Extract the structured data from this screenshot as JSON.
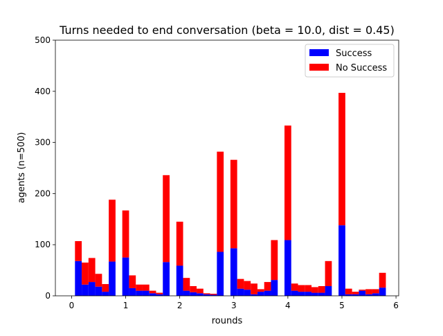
{
  "chart_data": {
    "type": "bar",
    "stacked": true,
    "title": "Turns needed to end conversation (beta = 10.0, dist = 0.45)",
    "xlabel": "rounds",
    "ylabel": "agents (n=500)",
    "xlim": [
      -0.3,
      6.05
    ],
    "ylim": [
      0,
      500
    ],
    "bin_width": 0.125,
    "x_ticks": [
      0,
      1,
      2,
      3,
      4,
      5,
      6
    ],
    "y_ticks": [
      0,
      100,
      200,
      300,
      400,
      500
    ],
    "legend_position": "top-right",
    "grid": false,
    "x": [
      0.125,
      0.25,
      0.375,
      0.5,
      0.625,
      0.75,
      1.0,
      1.125,
      1.25,
      1.375,
      1.5,
      1.625,
      1.75,
      2.0,
      2.125,
      2.25,
      2.375,
      2.5,
      2.625,
      2.75,
      3.0,
      3.125,
      3.25,
      3.375,
      3.5,
      3.625,
      3.75,
      4.0,
      4.125,
      4.25,
      4.375,
      4.5,
      4.625,
      4.75,
      5.0,
      5.125,
      5.25,
      5.375,
      5.5,
      5.625,
      5.75
    ],
    "series": [
      {
        "name": "Success",
        "color": "#0000ff",
        "values": [
          68,
          22,
          27,
          18,
          8,
          67,
          75,
          15,
          10,
          10,
          5,
          3,
          66,
          59,
          10,
          7,
          5,
          3,
          2,
          86,
          93,
          14,
          12,
          3,
          8,
          10,
          31,
          109,
          10,
          8,
          8,
          6,
          6,
          19,
          138,
          3,
          3,
          10,
          3,
          5,
          16
        ]
      },
      {
        "name": "No Success",
        "color": "#ff0000",
        "values": [
          39,
          43,
          47,
          25,
          15,
          121,
          92,
          25,
          12,
          12,
          5,
          3,
          170,
          86,
          25,
          12,
          9,
          2,
          2,
          196,
          173,
          19,
          17,
          21,
          5,
          17,
          78,
          224,
          14,
          13,
          13,
          11,
          13,
          49,
          259,
          11,
          5,
          2,
          10,
          8,
          29
        ]
      }
    ]
  }
}
